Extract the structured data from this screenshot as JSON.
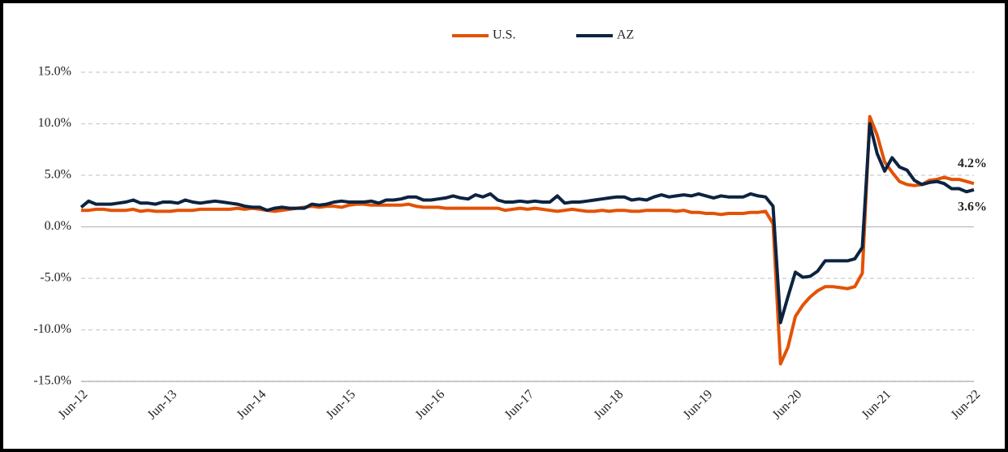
{
  "chart_data": {
    "type": "line",
    "categories": [
      "Jun-12",
      null,
      null,
      null,
      null,
      null,
      null,
      null,
      null,
      null,
      null,
      null,
      "Jun-13",
      null,
      null,
      null,
      null,
      null,
      null,
      null,
      null,
      null,
      null,
      null,
      "Jun-14",
      null,
      null,
      null,
      null,
      null,
      null,
      null,
      null,
      null,
      null,
      null,
      "Jun-15",
      null,
      null,
      null,
      null,
      null,
      null,
      null,
      null,
      null,
      null,
      null,
      "Jun-16",
      null,
      null,
      null,
      null,
      null,
      null,
      null,
      null,
      null,
      null,
      null,
      "Jun-17",
      null,
      null,
      null,
      null,
      null,
      null,
      null,
      null,
      null,
      null,
      null,
      "Jun-18",
      null,
      null,
      null,
      null,
      null,
      null,
      null,
      null,
      null,
      null,
      null,
      "Jun-19",
      null,
      null,
      null,
      null,
      null,
      null,
      null,
      null,
      null,
      null,
      null,
      "Jun-20",
      null,
      null,
      null,
      null,
      null,
      null,
      null,
      null,
      null,
      null,
      null,
      "Jun-21",
      null,
      null,
      null,
      null,
      null,
      null,
      null,
      null,
      null,
      null,
      null,
      "Jun-22"
    ],
    "series": [
      {
        "name": "U.S.",
        "color": "#e35205",
        "values": [
          1.6,
          1.6,
          1.7,
          1.7,
          1.6,
          1.6,
          1.6,
          1.7,
          1.5,
          1.6,
          1.5,
          1.5,
          1.5,
          1.6,
          1.6,
          1.6,
          1.7,
          1.7,
          1.7,
          1.7,
          1.7,
          1.8,
          1.7,
          1.8,
          1.7,
          1.6,
          1.5,
          1.6,
          1.7,
          1.8,
          1.9,
          2.0,
          1.9,
          2.0,
          2.0,
          1.9,
          2.1,
          2.2,
          2.2,
          2.1,
          2.1,
          2.1,
          2.1,
          2.1,
          2.2,
          2.0,
          1.9,
          1.9,
          1.9,
          1.8,
          1.8,
          1.8,
          1.8,
          1.8,
          1.8,
          1.8,
          1.8,
          1.6,
          1.7,
          1.8,
          1.7,
          1.8,
          1.7,
          1.6,
          1.5,
          1.6,
          1.7,
          1.6,
          1.5,
          1.5,
          1.6,
          1.5,
          1.6,
          1.6,
          1.5,
          1.5,
          1.6,
          1.6,
          1.6,
          1.6,
          1.5,
          1.6,
          1.4,
          1.4,
          1.3,
          1.3,
          1.2,
          1.3,
          1.3,
          1.3,
          1.4,
          1.4,
          1.5,
          0.3,
          -13.3,
          -11.7,
          -8.7,
          -7.6,
          -6.8,
          -6.2,
          -5.8,
          -5.8,
          -5.9,
          -6.0,
          -5.8,
          -4.5,
          10.7,
          8.9,
          6.3,
          5.3,
          4.4,
          4.1,
          4.0,
          4.1,
          4.5,
          4.6,
          4.8,
          4.6,
          4.6,
          4.4,
          4.2
        ],
        "value_labels": [
          null,
          null,
          null,
          null,
          null,
          null,
          null,
          null,
          null,
          null,
          null,
          null,
          null,
          null,
          null,
          null,
          null,
          null,
          null,
          null,
          null,
          null,
          null,
          null,
          null,
          null,
          null,
          null,
          null,
          null,
          null,
          null,
          null,
          null,
          null,
          null,
          null,
          null,
          null,
          null,
          null,
          null,
          null,
          null,
          null,
          null,
          null,
          null,
          null,
          null,
          null,
          null,
          null,
          null,
          null,
          null,
          null,
          null,
          null,
          null,
          null,
          null,
          null,
          null,
          null,
          null,
          null,
          null,
          null,
          null,
          null,
          null,
          null,
          null,
          null,
          null,
          null,
          null,
          null,
          null,
          null,
          null,
          null,
          null,
          null,
          null,
          null,
          null,
          null,
          null,
          null,
          null,
          null,
          null,
          null,
          null,
          null,
          null,
          null,
          null,
          null,
          null,
          null,
          null,
          null,
          null,
          null,
          null,
          null,
          null,
          null,
          null,
          null,
          null,
          null,
          null,
          null,
          null,
          null,
          null,
          "4.2%"
        ]
      },
      {
        "name": "AZ",
        "color": "#0c2340",
        "values": [
          1.9,
          2.5,
          2.2,
          2.2,
          2.2,
          2.3,
          2.4,
          2.6,
          2.3,
          2.3,
          2.2,
          2.4,
          2.4,
          2.3,
          2.6,
          2.4,
          2.3,
          2.4,
          2.5,
          2.4,
          2.3,
          2.2,
          2.0,
          1.9,
          1.9,
          1.6,
          1.8,
          1.9,
          1.8,
          1.8,
          1.8,
          2.2,
          2.1,
          2.2,
          2.4,
          2.5,
          2.4,
          2.4,
          2.4,
          2.5,
          2.3,
          2.6,
          2.6,
          2.7,
          2.9,
          2.9,
          2.6,
          2.6,
          2.7,
          2.8,
          3.0,
          2.8,
          2.7,
          3.1,
          2.9,
          3.2,
          2.6,
          2.4,
          2.4,
          2.5,
          2.4,
          2.5,
          2.4,
          2.4,
          3.0,
          2.3,
          2.4,
          2.4,
          2.5,
          2.6,
          2.7,
          2.8,
          2.9,
          2.9,
          2.6,
          2.7,
          2.6,
          2.9,
          3.1,
          2.9,
          3.0,
          3.1,
          3.0,
          3.2,
          3.0,
          2.8,
          3.0,
          2.9,
          2.9,
          2.9,
          3.2,
          3.0,
          2.9,
          2.0,
          -9.3,
          -6.8,
          -4.4,
          -4.9,
          -4.8,
          -4.3,
          -3.3,
          -3.3,
          -3.3,
          -3.3,
          -3.1,
          -2.0,
          10.0,
          7.1,
          5.4,
          6.7,
          5.8,
          5.5,
          4.5,
          4.1,
          4.3,
          4.4,
          4.2,
          3.7,
          3.7,
          3.4,
          3.6
        ],
        "value_labels": [
          null,
          null,
          null,
          null,
          null,
          null,
          null,
          null,
          null,
          null,
          null,
          null,
          null,
          null,
          null,
          null,
          null,
          null,
          null,
          null,
          null,
          null,
          null,
          null,
          null,
          null,
          null,
          null,
          null,
          null,
          null,
          null,
          null,
          null,
          null,
          null,
          null,
          null,
          null,
          null,
          null,
          null,
          null,
          null,
          null,
          null,
          null,
          null,
          null,
          null,
          null,
          null,
          null,
          null,
          null,
          null,
          null,
          null,
          null,
          null,
          null,
          null,
          null,
          null,
          null,
          null,
          null,
          null,
          null,
          null,
          null,
          null,
          null,
          null,
          null,
          null,
          null,
          null,
          null,
          null,
          null,
          null,
          null,
          null,
          null,
          null,
          null,
          null,
          null,
          null,
          null,
          null,
          null,
          null,
          null,
          null,
          null,
          null,
          null,
          null,
          null,
          null,
          null,
          null,
          null,
          null,
          null,
          null,
          null,
          null,
          null,
          null,
          null,
          null,
          null,
          null,
          null,
          null,
          null,
          null,
          "3.6%"
        ]
      }
    ],
    "ylim": [
      -15,
      15
    ],
    "yticks": [
      {
        "value": -15,
        "label": "-15.0%"
      },
      {
        "value": -10,
        "label": "-10.0%"
      },
      {
        "value": -5,
        "label": "-5.0%"
      },
      {
        "value": 0,
        "label": "0.0%"
      },
      {
        "value": 5,
        "label": "5.0%"
      },
      {
        "value": 10,
        "label": "10.0%"
      },
      {
        "value": 15,
        "label": "15.0%"
      }
    ],
    "grid": true,
    "legend": "top"
  }
}
